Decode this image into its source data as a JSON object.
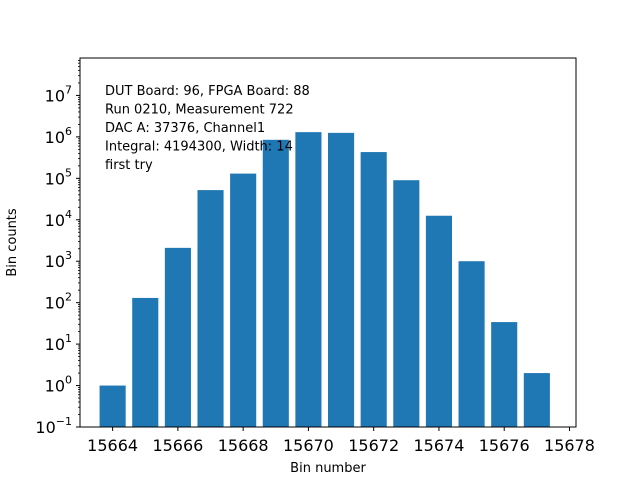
{
  "chart_data": {
    "type": "bar",
    "yscale": "log",
    "xlabel": "Bin number",
    "ylabel": "Bin counts",
    "xlim": [
      15663.0,
      15678.2
    ],
    "ylim": [
      0.1,
      80000000
    ],
    "grid": false,
    "color": "#1f77b4",
    "x": [
      15664,
      15665,
      15666,
      15667,
      15668,
      15669,
      15670,
      15671,
      15672,
      15673,
      15674,
      15675,
      15676,
      15677
    ],
    "values": [
      1,
      130,
      2100,
      52000,
      130000,
      850000,
      1300000,
      1250000,
      430000,
      90000,
      12500,
      1000,
      34,
      2
    ],
    "xticks": [
      15664,
      15666,
      15668,
      15670,
      15672,
      15674,
      15676,
      15678
    ],
    "yticks": [
      {
        "base": "10",
        "exp": "−1"
      },
      {
        "base": "10",
        "exp": "0"
      },
      {
        "base": "10",
        "exp": "1"
      },
      {
        "base": "10",
        "exp": "2"
      },
      {
        "base": "10",
        "exp": "3"
      },
      {
        "base": "10",
        "exp": "4"
      },
      {
        "base": "10",
        "exp": "5"
      },
      {
        "base": "10",
        "exp": "6"
      },
      {
        "base": "10",
        "exp": "7"
      }
    ],
    "annotations": [
      "DUT Board: 96, FPGA Board: 88",
      "Run 0210, Measurement 722",
      "DAC A: 37376, Channel1",
      "Integral: 4194300, Width: 14",
      "first try"
    ]
  }
}
